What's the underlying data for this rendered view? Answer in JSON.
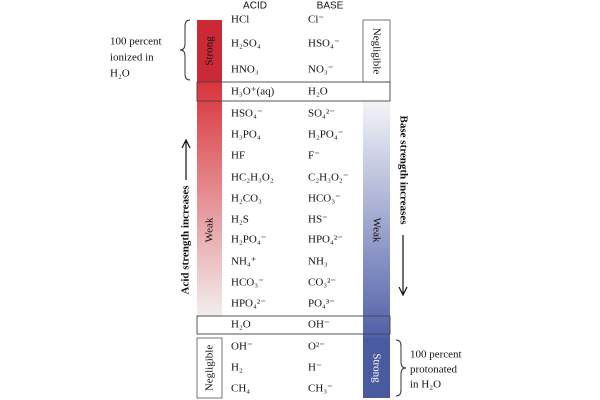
{
  "headers": {
    "acid": "ACID",
    "base": "BASE"
  },
  "left_bar": {
    "strong": "Strong",
    "weak": "Weak",
    "negligible": "Negligible"
  },
  "right_bar": {
    "negligible": "Negligible",
    "weak": "Weak",
    "strong": "Strong"
  },
  "pairs": [
    {
      "acid": "HCl",
      "base": "Cl⁻"
    },
    {
      "acid": "H₂SO₄",
      "base": "HSO₄⁻"
    },
    {
      "acid": "HNO₃",
      "base": "NO₃⁻"
    },
    {
      "acid": "H₃O⁺(aq)",
      "base": "H₂O"
    },
    {
      "acid": "HSO₄⁻",
      "base": "SO₄²⁻"
    },
    {
      "acid": "H₃PO₄",
      "base": "H₂PO₄⁻"
    },
    {
      "acid": "HF",
      "base": "F⁻"
    },
    {
      "acid": "HC₂H₃O₂",
      "base": "C₂H₃O₂⁻"
    },
    {
      "acid": "H₂CO₃",
      "base": "HCO₃⁻"
    },
    {
      "acid": "H₂S",
      "base": "HS⁻"
    },
    {
      "acid": "H₂PO₄⁻",
      "base": "HPO₄²⁻"
    },
    {
      "acid": "NH₄⁺",
      "base": "NH₃"
    },
    {
      "acid": "HCO₃⁻",
      "base": "CO₃²⁻"
    },
    {
      "acid": "HPO₄²⁻",
      "base": "PO₄³⁻"
    },
    {
      "acid": "H₂O",
      "base": "OH⁻"
    },
    {
      "acid": "OH⁻",
      "base": "O²⁻"
    },
    {
      "acid": "H₂",
      "base": "H⁻"
    },
    {
      "acid": "CH₄",
      "base": "CH₃⁻"
    }
  ],
  "annotations": {
    "ionized": [
      "100 percent",
      "ionized in",
      "H₂O"
    ],
    "protonated": [
      "100 percent",
      "protonated",
      "in H₂O"
    ],
    "acid_trend": "Acid strength increases",
    "base_trend": "Base strength increases"
  }
}
